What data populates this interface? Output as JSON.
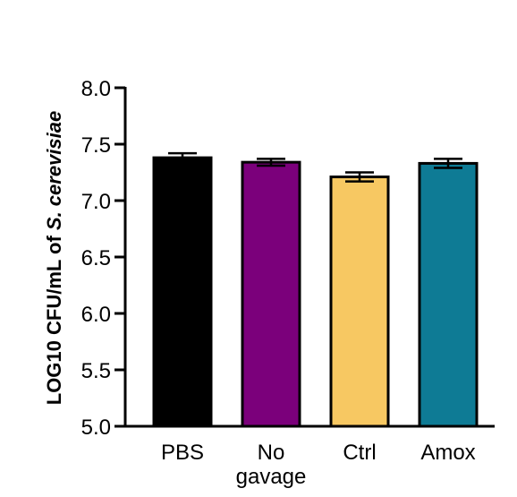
{
  "chart_data": {
    "type": "bar",
    "categories": [
      "PBS",
      "No gavage",
      "Ctrl",
      "Amox"
    ],
    "category_lines": [
      [
        "PBS"
      ],
      [
        "No",
        "gavage"
      ],
      [
        "Ctrl"
      ],
      [
        "Amox"
      ]
    ],
    "values": [
      7.38,
      7.34,
      7.21,
      7.33
    ],
    "errors": [
      0.04,
      0.03,
      0.04,
      0.04
    ],
    "colors": [
      "#000000",
      "#7b007b",
      "#f7c862",
      "#0e7b95"
    ],
    "ylabel_prefix": "LOG10 CFU/mL of ",
    "ylabel_italic": "S. cerevisiae",
    "ylim": [
      5.0,
      8.0
    ],
    "yticks": [
      5.0,
      5.5,
      6.0,
      6.5,
      7.0,
      7.5,
      8.0
    ],
    "ytick_labels": [
      "5.0",
      "5.5",
      "6.0",
      "6.5",
      "7.0",
      "7.5",
      "8.0"
    ],
    "grid": false,
    "legend": "none"
  }
}
